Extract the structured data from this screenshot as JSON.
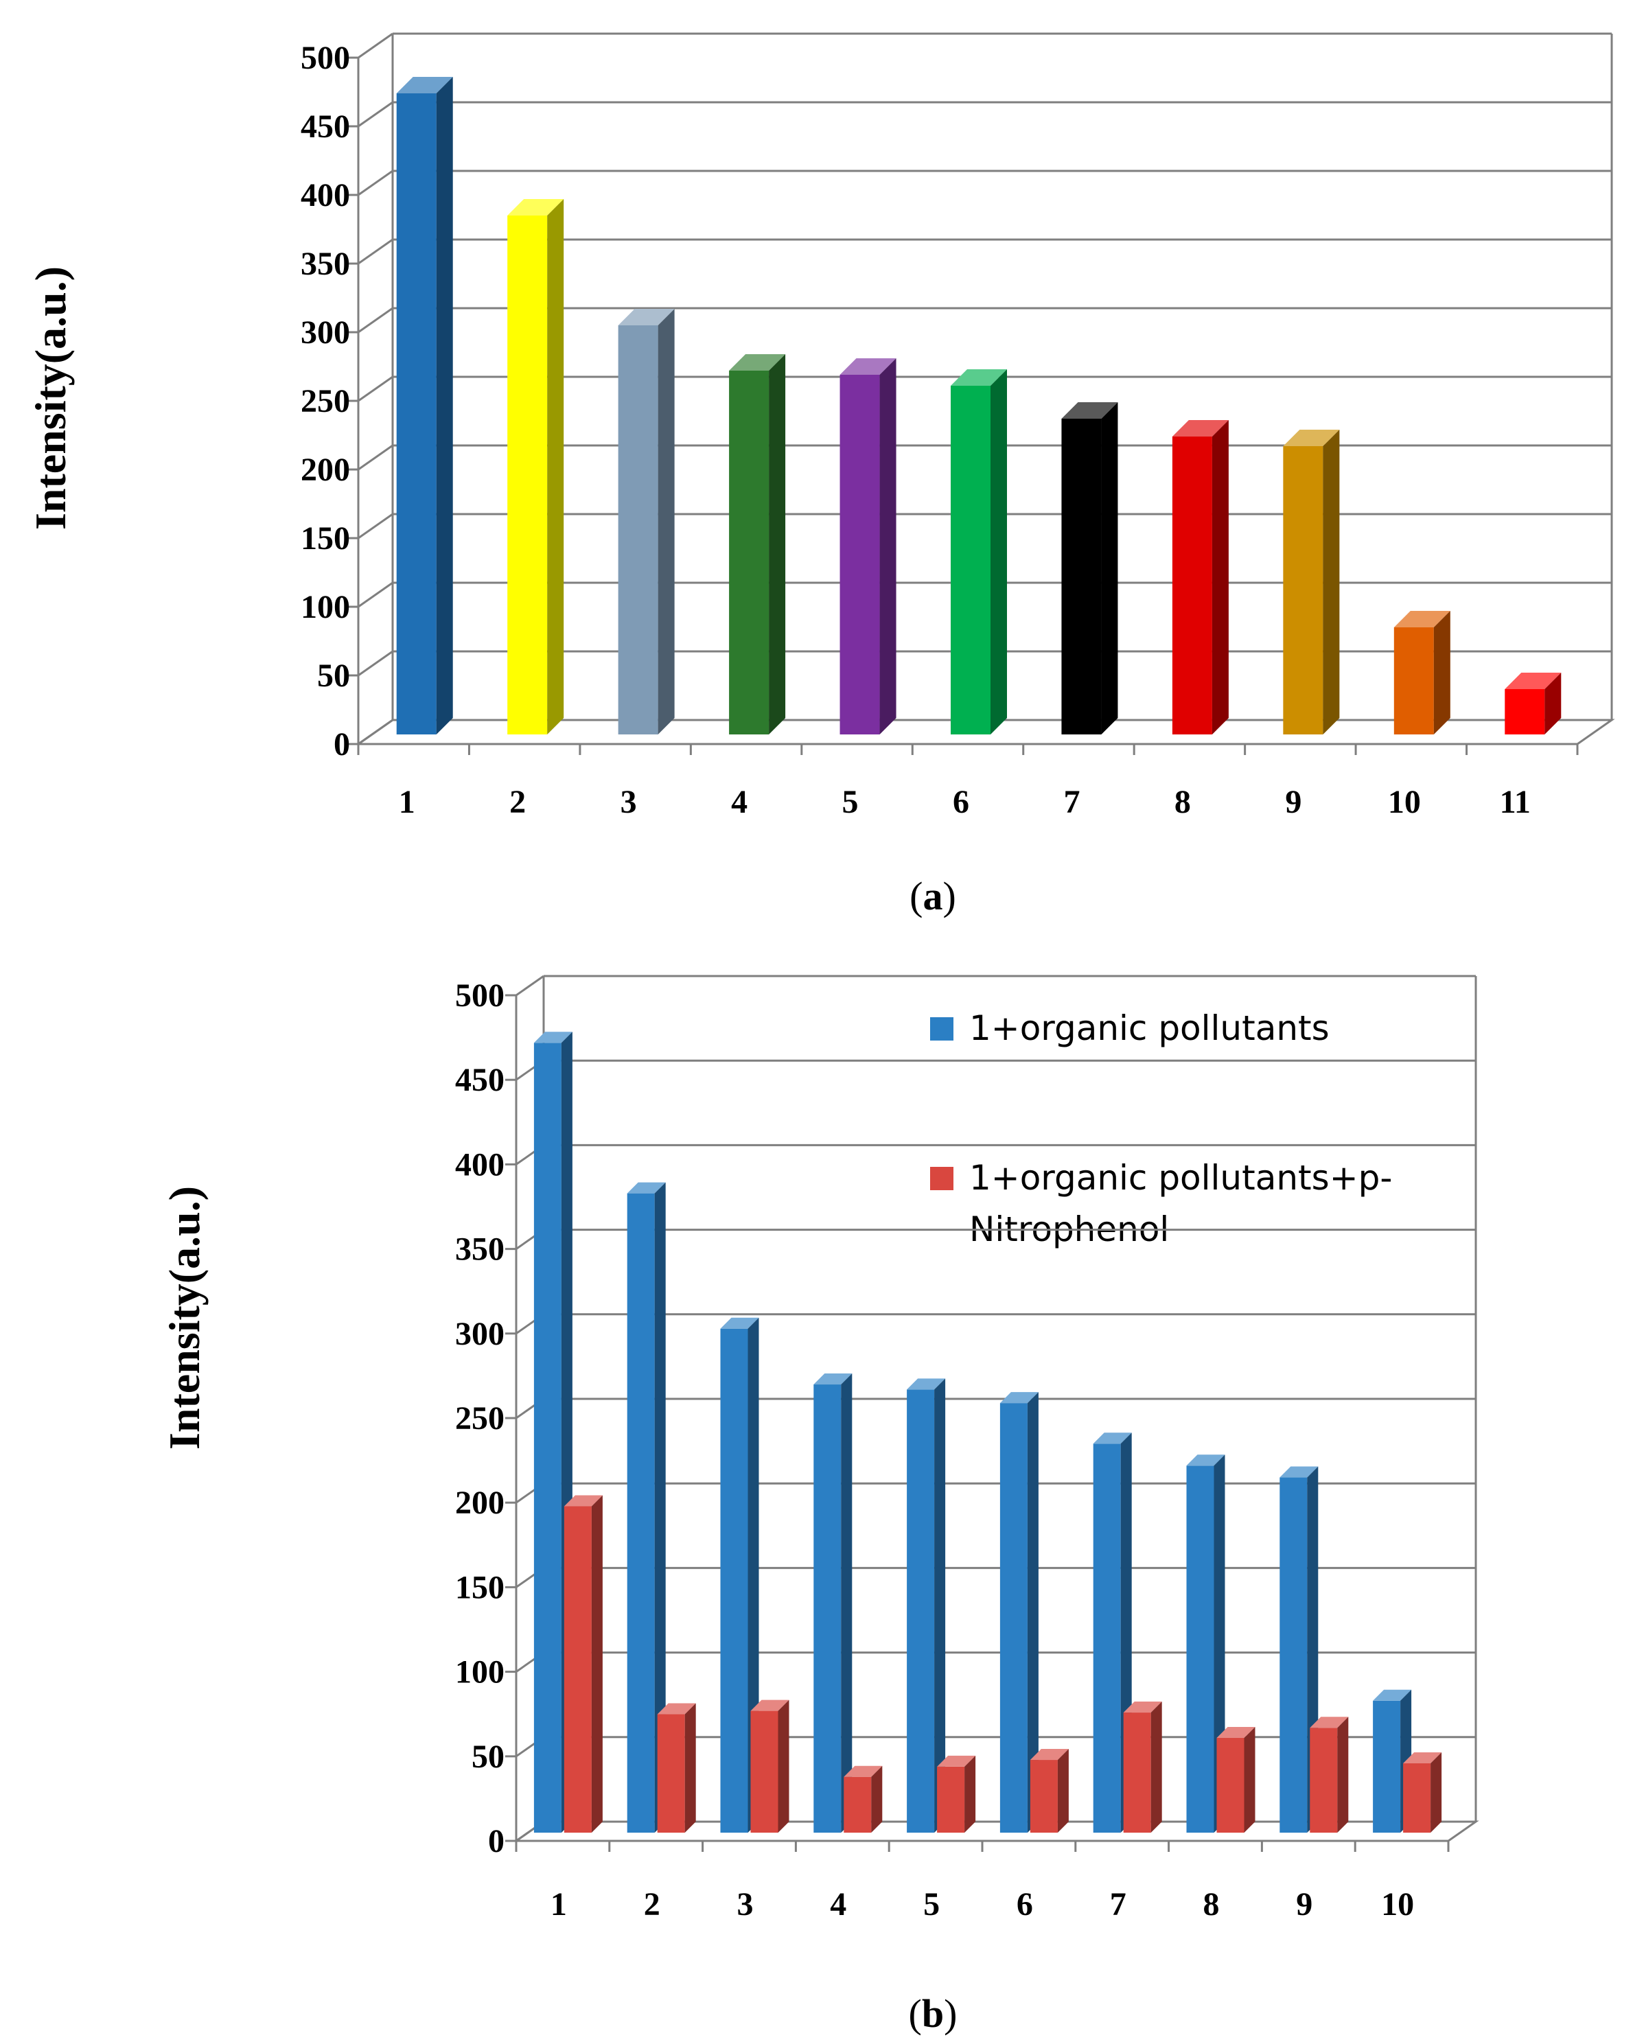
{
  "chart_data": [
    {
      "id": "a",
      "type": "bar",
      "ylabel": "Intensity(a.u.)",
      "ylim": [
        0,
        500
      ],
      "yticks": [
        0,
        50,
        100,
        150,
        200,
        250,
        300,
        350,
        400,
        450,
        500
      ],
      "categories": [
        "1",
        "2",
        "3",
        "4",
        "5",
        "6",
        "7",
        "8",
        "9",
        "10",
        "11"
      ],
      "values": [
        467,
        378,
        298,
        265,
        262,
        254,
        230,
        217,
        210,
        78,
        33
      ],
      "colors": [
        "#1f6fb4",
        "#ffff00",
        "#7f9bb5",
        "#2d7a2d",
        "#7b2fa0",
        "#00b050",
        "#000000",
        "#e00000",
        "#cc8e00",
        "#e05e00",
        "#ff0000"
      ],
      "caption_open": "(",
      "caption_letter": "a",
      "caption_close": ")"
    },
    {
      "id": "b",
      "type": "bar",
      "ylabel": "Intensity(a.u.)",
      "ylim": [
        0,
        500
      ],
      "yticks": [
        0,
        50,
        100,
        150,
        200,
        250,
        300,
        350,
        400,
        450,
        500
      ],
      "categories": [
        "1",
        "2",
        "3",
        "4",
        "5",
        "6",
        "7",
        "8",
        "9",
        "10"
      ],
      "series": [
        {
          "name": "1+organic pollutants",
          "color": "#2b7fc4",
          "values": [
            467,
            378,
            298,
            265,
            262,
            254,
            230,
            217,
            210,
            78
          ]
        },
        {
          "name_line1": "1+organic pollutants+p-",
          "name_line2": "Nitrophenol",
          "color": "#d9473f",
          "values": [
            193,
            70,
            72,
            33,
            39,
            43,
            71,
            56,
            62,
            41
          ]
        }
      ],
      "caption_open": "(",
      "caption_letter": "b",
      "caption_close": ")"
    }
  ]
}
